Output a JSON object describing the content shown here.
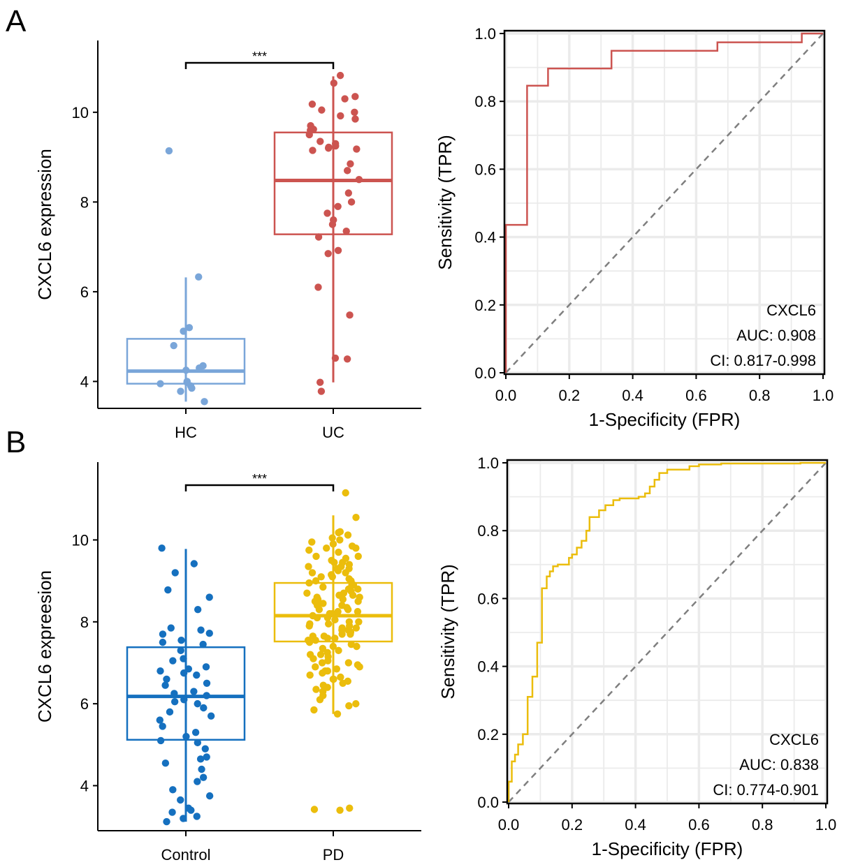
{
  "panel_labels": {
    "a": "A",
    "b": "B"
  },
  "colors": {
    "hc": "#7aa6d9",
    "uc": "#cc5450",
    "control": "#1570bf",
    "pd": "#ebbd0c",
    "grid": "#ebebeb",
    "diag": "#7f7f7f"
  },
  "chart_data": [
    {
      "id": "boxA",
      "type": "box",
      "ylabel": "CXCL6 expression",
      "ylim": [
        3.4,
        11.6
      ],
      "yticks": [
        4,
        6,
        8,
        10
      ],
      "categories": [
        "HC",
        "UC"
      ],
      "boxes": [
        {
          "name": "HC",
          "q1": 3.95,
          "median": 4.23,
          "q3": 4.95,
          "whisker_low": 3.55,
          "whisker_high": 6.32,
          "points": [
            9.14,
            6.33,
            5.2,
            5.12,
            4.8,
            4.35,
            4.3,
            4.25,
            4.0,
            3.98,
            3.95,
            3.9,
            3.85,
            3.78,
            3.55
          ]
        },
        {
          "name": "UC",
          "q1": 7.28,
          "median": 8.48,
          "q3": 9.55,
          "whisker_low": 3.98,
          "whisker_high": 10.8,
          "points": [
            10.82,
            10.65,
            10.35,
            10.3,
            10.18,
            10.05,
            10.0,
            9.92,
            9.85,
            9.7,
            9.62,
            9.6,
            9.5,
            9.35,
            9.3,
            9.25,
            9.22,
            9.2,
            9.18,
            9.15,
            8.85,
            8.7,
            8.5,
            8.2,
            8.0,
            7.9,
            7.75,
            7.6,
            7.5,
            7.35,
            7.22,
            6.92,
            6.85,
            6.1,
            5.48,
            4.52,
            4.5,
            3.98,
            3.78
          ]
        }
      ],
      "significance": "***"
    },
    {
      "id": "rocA",
      "type": "roc",
      "xlabel": "1-Specificity (FPR)",
      "ylabel": "Sensitivity (TPR)",
      "xlim": [
        0,
        1
      ],
      "ylim": [
        0,
        1
      ],
      "ticks": [
        "0.0",
        "0.2",
        "0.4",
        "0.6",
        "0.8",
        "1.0"
      ],
      "curve": [
        [
          0,
          0
        ],
        [
          0,
          0.436
        ],
        [
          0.067,
          0.436
        ],
        [
          0.067,
          0.846
        ],
        [
          0.133,
          0.846
        ],
        [
          0.133,
          0.897
        ],
        [
          0.333,
          0.897
        ],
        [
          0.333,
          0.949
        ],
        [
          0.667,
          0.949
        ],
        [
          0.667,
          0.974
        ],
        [
          0.933,
          0.974
        ],
        [
          0.933,
          1.0
        ],
        [
          1.0,
          1.0
        ]
      ],
      "annotation": {
        "gene": "CXCL6",
        "auc": "AUC: 0.908",
        "ci": "CI: 0.817-0.998"
      }
    },
    {
      "id": "boxB",
      "type": "box",
      "ylabel": "CXCL6 expreesion",
      "ylim": [
        2.9,
        11.9
      ],
      "yticks": [
        4,
        6,
        8,
        10
      ],
      "categories": [
        "Control",
        "PD"
      ],
      "boxes": [
        {
          "name": "Control",
          "q1": 5.12,
          "median": 6.18,
          "q3": 7.38,
          "whisker_low": 3.12,
          "whisker_high": 9.78,
          "points": [
            9.8,
            9.42,
            9.2,
            8.78,
            8.6,
            8.3,
            7.85,
            7.8,
            7.72,
            7.7,
            7.55,
            7.5,
            7.45,
            7.3,
            7.1,
            7.05,
            6.9,
            6.85,
            6.8,
            6.75,
            6.7,
            6.6,
            6.5,
            6.45,
            6.3,
            6.25,
            6.2,
            6.1,
            6.05,
            6.0,
            5.9,
            5.8,
            5.7,
            5.6,
            5.45,
            5.3,
            5.2,
            5.1,
            5.05,
            4.9,
            4.7,
            4.65,
            4.55,
            4.4,
            4.2,
            4.1,
            3.9,
            3.75,
            3.65,
            3.45,
            3.4,
            3.35,
            3.25,
            3.2,
            3.12
          ]
        },
        {
          "name": "PD",
          "q1": 7.52,
          "median": 8.15,
          "q3": 8.95,
          "whisker_low": 5.75,
          "whisker_high": 10.6,
          "points": [
            11.15,
            10.55,
            10.2,
            10.18,
            10.12,
            10.05,
            10.0,
            9.95,
            9.9,
            9.85,
            9.8,
            9.75,
            9.7,
            9.6,
            9.55,
            9.5,
            9.45,
            9.4,
            9.35,
            9.3,
            9.25,
            9.2,
            9.15,
            9.1,
            9.05,
            9.0,
            8.95,
            8.9,
            8.85,
            8.8,
            8.75,
            8.7,
            8.65,
            8.6,
            8.55,
            8.5,
            8.45,
            8.4,
            8.35,
            8.3,
            8.25,
            8.2,
            8.15,
            8.1,
            8.05,
            8.0,
            7.95,
            7.9,
            7.85,
            7.8,
            7.75,
            7.7,
            7.65,
            7.6,
            7.55,
            7.5,
            7.45,
            7.4,
            7.35,
            7.3,
            7.25,
            7.2,
            7.15,
            7.1,
            7.05,
            7.0,
            6.95,
            6.9,
            6.85,
            6.8,
            6.75,
            6.7,
            6.65,
            6.6,
            6.55,
            6.5,
            6.4,
            6.3,
            6.2,
            6.1,
            6.0,
            5.95,
            5.85,
            5.75,
            8.2,
            8.6,
            8.0,
            8.4,
            7.9,
            8.8,
            9.3,
            7.6,
            8.3,
            8.7,
            7.7,
            9.0,
            8.1,
            8.5,
            7.8,
            9.2,
            8.9,
            7.4,
            7.2,
            6.8,
            9.6,
            9.8,
            6.9,
            7.0,
            8.25,
            8.45,
            8.55,
            8.65,
            7.95,
            7.85,
            7.65,
            7.55,
            9.1,
            9.35,
            9.45,
            6.6,
            6.45,
            6.35,
            3.45,
            3.42,
            3.4
          ]
        }
      ],
      "significance": "***"
    },
    {
      "id": "rocB",
      "type": "roc",
      "xlabel": "1-Specificity (FPR)",
      "ylabel": "Sensitivity (TPR)",
      "xlim": [
        0,
        1
      ],
      "ylim": [
        0,
        1
      ],
      "ticks": [
        "0.0",
        "0.2",
        "0.4",
        "0.6",
        "0.8",
        "1.0"
      ],
      "curve": [
        [
          0,
          0
        ],
        [
          0,
          0.06
        ],
        [
          0.01,
          0.06
        ],
        [
          0.01,
          0.12
        ],
        [
          0.02,
          0.12
        ],
        [
          0.02,
          0.14
        ],
        [
          0.03,
          0.14
        ],
        [
          0.03,
          0.17
        ],
        [
          0.045,
          0.17
        ],
        [
          0.045,
          0.2
        ],
        [
          0.06,
          0.2
        ],
        [
          0.06,
          0.31
        ],
        [
          0.075,
          0.31
        ],
        [
          0.075,
          0.37
        ],
        [
          0.09,
          0.37
        ],
        [
          0.09,
          0.47
        ],
        [
          0.105,
          0.47
        ],
        [
          0.105,
          0.63
        ],
        [
          0.12,
          0.63
        ],
        [
          0.12,
          0.665
        ],
        [
          0.13,
          0.665
        ],
        [
          0.13,
          0.68
        ],
        [
          0.14,
          0.68
        ],
        [
          0.14,
          0.695
        ],
        [
          0.155,
          0.695
        ],
        [
          0.155,
          0.7
        ],
        [
          0.19,
          0.7
        ],
        [
          0.19,
          0.72
        ],
        [
          0.2,
          0.72
        ],
        [
          0.2,
          0.73
        ],
        [
          0.215,
          0.73
        ],
        [
          0.215,
          0.75
        ],
        [
          0.23,
          0.75
        ],
        [
          0.23,
          0.77
        ],
        [
          0.245,
          0.77
        ],
        [
          0.245,
          0.8
        ],
        [
          0.255,
          0.8
        ],
        [
          0.255,
          0.84
        ],
        [
          0.285,
          0.84
        ],
        [
          0.285,
          0.86
        ],
        [
          0.305,
          0.86
        ],
        [
          0.305,
          0.875
        ],
        [
          0.33,
          0.875
        ],
        [
          0.33,
          0.89
        ],
        [
          0.35,
          0.89
        ],
        [
          0.35,
          0.895
        ],
        [
          0.41,
          0.895
        ],
        [
          0.41,
          0.9
        ],
        [
          0.43,
          0.9
        ],
        [
          0.43,
          0.91
        ],
        [
          0.445,
          0.91
        ],
        [
          0.445,
          0.93
        ],
        [
          0.46,
          0.93
        ],
        [
          0.46,
          0.95
        ],
        [
          0.475,
          0.95
        ],
        [
          0.475,
          0.97
        ],
        [
          0.5,
          0.97
        ],
        [
          0.5,
          0.98
        ],
        [
          0.57,
          0.98
        ],
        [
          0.57,
          0.99
        ],
        [
          0.6,
          0.99
        ],
        [
          0.6,
          0.995
        ],
        [
          0.67,
          0.995
        ],
        [
          0.67,
          0.998
        ],
        [
          0.92,
          0.998
        ],
        [
          0.92,
          1.0
        ],
        [
          1.0,
          1.0
        ]
      ],
      "annotation": {
        "gene": "CXCL6",
        "auc": "AUC: 0.838",
        "ci": "CI: 0.774-0.901"
      }
    }
  ]
}
